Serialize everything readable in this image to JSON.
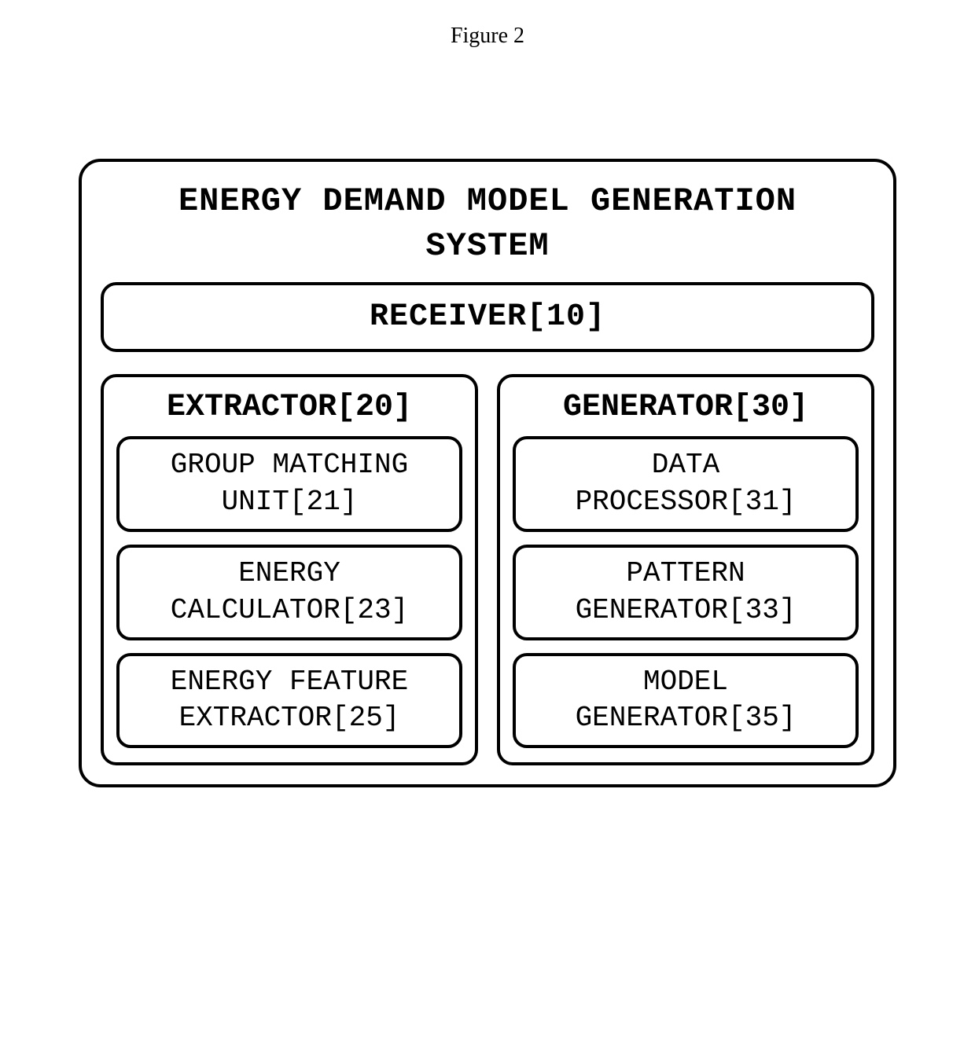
{
  "figure_title": "Figure 2",
  "diagram": {
    "type": "block-diagram",
    "background_color": "#ffffff",
    "border_color": "#000000",
    "border_width": 4,
    "border_radius_outer": 28,
    "border_radius_inner": 20,
    "border_radius_unit": 18,
    "font_family": "Courier New",
    "title_fontsize": 42,
    "box_title_fontsize": 40,
    "unit_fontsize": 36,
    "text_color": "#000000",
    "system": {
      "title_line1": "ENERGY DEMAND MODEL GENERATION",
      "title_line2": "SYSTEM",
      "receiver": {
        "label": "RECEIVER[10]"
      },
      "columns": [
        {
          "title": "EXTRACTOR[20]",
          "units": [
            {
              "line1": "GROUP MATCHING",
              "line2": "UNIT[21]"
            },
            {
              "line1": "ENERGY",
              "line2": "CALCULATOR[23]"
            },
            {
              "line1": "ENERGY FEATURE",
              "line2": "EXTRACTOR[25]"
            }
          ]
        },
        {
          "title": "GENERATOR[30]",
          "units": [
            {
              "line1": "DATA",
              "line2": "PROCESSOR[31]"
            },
            {
              "line1": "PATTERN",
              "line2": "GENERATOR[33]"
            },
            {
              "line1": "MODEL",
              "line2": "GENERATOR[35]"
            }
          ]
        }
      ]
    }
  }
}
